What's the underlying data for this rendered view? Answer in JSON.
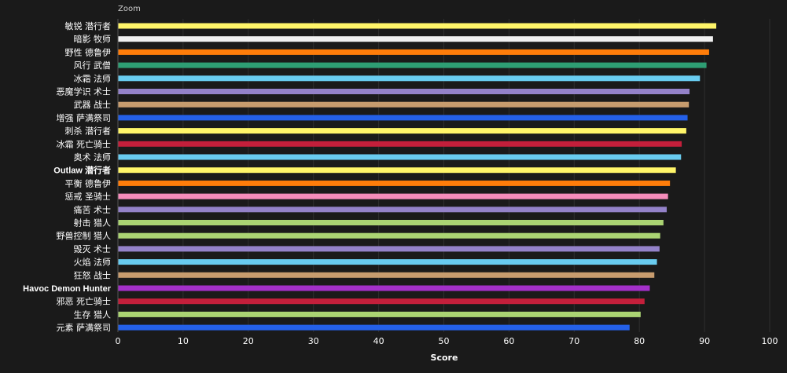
{
  "zoom_label": "Zoom",
  "chart_data": {
    "type": "bar",
    "orientation": "horizontal",
    "title": "",
    "xlabel": "Score",
    "ylabel": "",
    "xlim": [
      0,
      100
    ],
    "xticks": [
      0,
      10,
      20,
      30,
      40,
      50,
      60,
      70,
      80,
      90,
      100
    ],
    "grid": true,
    "categories": [
      "敏锐 潜行者",
      "暗影 牧师",
      "野性 德鲁伊",
      "风行 武僧",
      "冰霜 法师",
      "恶魔学识 术士",
      "武器 战士",
      "增强 萨满祭司",
      "刺杀 潜行者",
      "冰霜 死亡骑士",
      "奥术 法师",
      "Outlaw 潜行者",
      "平衡 德鲁伊",
      "惩戒 圣骑士",
      "痛苦 术士",
      "射击 猎人",
      "野兽控制 猎人",
      "毁灭 术士",
      "火焰 法师",
      "狂怒 战士",
      "Havoc Demon Hunter",
      "邪恶 死亡骑士",
      "生存 猎人",
      "元素 萨满祭司"
    ],
    "values": [
      91.8,
      91.3,
      90.7,
      90.3,
      89.3,
      87.7,
      87.6,
      87.4,
      87.2,
      86.5,
      86.4,
      85.6,
      84.7,
      84.4,
      84.2,
      83.7,
      83.2,
      83.1,
      82.7,
      82.3,
      81.6,
      80.8,
      80.2,
      78.5
    ],
    "colors": [
      "#FFF569",
      "#F0F0F0",
      "#FF7D0A",
      "#00FF96",
      "#69CCF0",
      "#9482C9",
      "#C79C6E",
      "#0070DE",
      "#FFF569",
      "#C41F3B",
      "#69CCF0",
      "#FFF569",
      "#FF7D0A",
      "#F58CBA",
      "#9482C9",
      "#ABD473",
      "#ABD473",
      "#9482C9",
      "#69CCF0",
      "#C79C6E",
      "#A330C9",
      "#C41F3B",
      "#ABD473",
      "#0070DE"
    ],
    "monk_color_override": "#2E9E74",
    "shaman_color_override": "#2460E8"
  }
}
